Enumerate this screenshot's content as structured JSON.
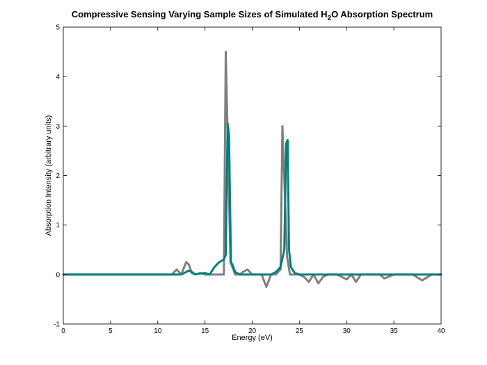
{
  "chart_data": {
    "type": "line",
    "title": {
      "before": "Compressive Sensing Varying Sample Sizes of Simulated H",
      "subscript": "2",
      "after": "O Absorption Spectrum"
    },
    "xlabel": "Energy (eV)",
    "ylabel": "Absorption Intensity (arbitrary units)",
    "xlim": [
      0,
      40
    ],
    "ylim": [
      -1,
      5
    ],
    "xticks": [
      0,
      5,
      10,
      15,
      20,
      25,
      30,
      35,
      40
    ],
    "yticks": [
      -1,
      0,
      1,
      2,
      3,
      4,
      5
    ],
    "grid": false,
    "series": [
      {
        "color": "#7f7f7f",
        "x": [
          0,
          11.5,
          12,
          12.5,
          13,
          13.3,
          13.6,
          14,
          14.5,
          15,
          15.5,
          16,
          16.5,
          17,
          17.2,
          17.7,
          18.2,
          18.7,
          19,
          19.5,
          20,
          21,
          21.5,
          22,
          22.5,
          23,
          23.2,
          23.7,
          24,
          25,
          25.5,
          26,
          26.5,
          27,
          27.5,
          28,
          29,
          30,
          30.5,
          31,
          31.5,
          32,
          33,
          33.5,
          34,
          35,
          36,
          37,
          38,
          39,
          40
        ],
        "y": [
          0,
          0,
          0.1,
          0,
          0.25,
          0.2,
          0.03,
          0,
          0.03,
          0,
          0,
          0,
          0,
          0,
          4.5,
          0.25,
          0,
          0,
          0.05,
          0.1,
          0,
          0,
          -0.25,
          0,
          0,
          0.1,
          3.0,
          0.35,
          0,
          0,
          -0.05,
          -0.15,
          0,
          -0.18,
          -0.05,
          0,
          0,
          -0.1,
          0,
          -0.15,
          0,
          0,
          0,
          0,
          -0.08,
          0,
          0,
          0,
          -0.12,
          0,
          0
        ]
      },
      {
        "color": "#007f7f",
        "x": [
          0,
          12.5,
          13,
          13.3,
          13.6,
          14,
          14.5,
          15,
          15.5,
          16,
          16.5,
          17,
          17.2,
          17.4,
          17.55,
          17.75,
          17.9,
          18.2,
          18.7,
          19,
          20,
          21,
          22,
          22.5,
          23,
          23.4,
          23.6,
          23.75,
          23.9,
          24.1,
          24.5,
          25,
          40
        ],
        "y": [
          0,
          0,
          0.05,
          0.08,
          0.05,
          0,
          0.02,
          0.03,
          0,
          0.15,
          0.25,
          0.3,
          0.4,
          3.05,
          2.8,
          0.25,
          0.2,
          0.05,
          0,
          0,
          0,
          0,
          0,
          0.05,
          0.15,
          0.5,
          2.65,
          2.72,
          0.5,
          0.15,
          0.03,
          0,
          0
        ]
      }
    ]
  }
}
